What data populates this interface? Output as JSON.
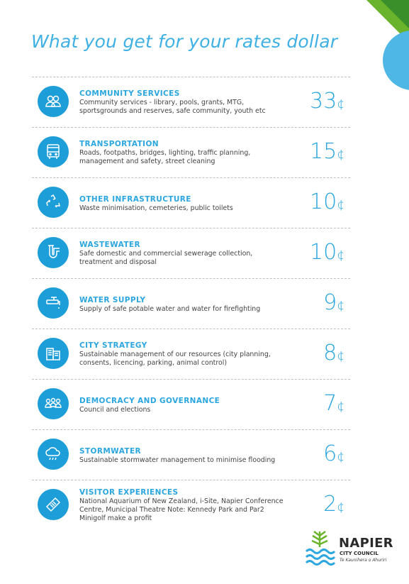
{
  "title": "What you get for your rates dollar",
  "colors": {
    "accent": "#2ba6df",
    "icon_bg": "#1e9ed8",
    "green": "#6ab42d",
    "dark_green": "#3a8f2a",
    "light_blue": "#4fb7e6"
  },
  "items": [
    {
      "icon": "community-icon",
      "heading": "COMMUNITY SERVICES",
      "desc": "Community services - library, pools, grants, MTG, sportsgrounds and reserves, safe community, youth etc",
      "amount": "33",
      "unit": "¢"
    },
    {
      "icon": "bus-icon",
      "heading": "TRANSPORTATION",
      "desc": "Roads, footpaths, bridges, lighting, traffic planning, management and safety, street cleaning",
      "amount": "15",
      "unit": "¢"
    },
    {
      "icon": "recycle-icon",
      "heading": "OTHER INFRASTRUCTURE",
      "desc": "Waste minimisation, cemeteries, public toilets",
      "amount": "10",
      "unit": "¢"
    },
    {
      "icon": "pipe-icon",
      "heading": "WASTEWATER",
      "desc": "Safe domestic and commercial sewerage collection, treatment and disposal",
      "amount": "10",
      "unit": "¢"
    },
    {
      "icon": "tap-icon",
      "heading": "WATER SUPPLY",
      "desc": "Supply of safe potable water and water for firefighting",
      "amount": "9",
      "unit": "¢"
    },
    {
      "icon": "building-icon",
      "heading": "CITY STRATEGY",
      "desc": "Sustainable management of our resources (city planning, consents, licencing, parking, animal control)",
      "amount": "8",
      "unit": "¢"
    },
    {
      "icon": "people-icon",
      "heading": "DEMOCRACY AND GOVERNANCE",
      "desc": "Council and elections",
      "amount": "7",
      "unit": "¢"
    },
    {
      "icon": "rain-cloud-icon",
      "heading": "STORMWATER",
      "desc": "Sustainable stormwater management to minimise flooding",
      "amount": "6",
      "unit": "¢"
    },
    {
      "icon": "ticket-icon",
      "heading": "VISITOR EXPERIENCES",
      "desc": "National Aquarium of New Zealand, i-Site, Napier Conference Centre, Municipal Theatre Note: Kennedy Park and Par2 Minigolf make a profit",
      "amount": "2",
      "unit": "¢"
    }
  ],
  "logo": {
    "name": "NAPIER",
    "sub": "CITY COUNCIL",
    "tagline": "Te Kaunihera o Ahuriri"
  }
}
